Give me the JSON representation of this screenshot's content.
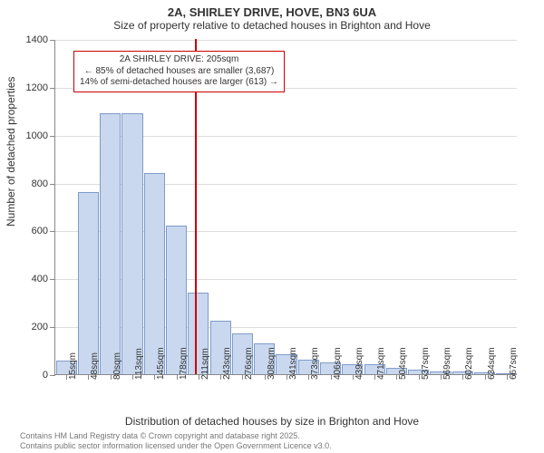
{
  "title": "2A, SHIRLEY DRIVE, HOVE, BN3 6UA",
  "subtitle": "Size of property relative to detached houses in Brighton and Hove",
  "y_axis_title": "Number of detached properties",
  "x_axis_title": "Distribution of detached houses by size in Brighton and Hove",
  "footer_line1": "Contains HM Land Registry data © Crown copyright and database right 2025.",
  "footer_line2": "Contains public sector information licensed under the Open Government Licence v3.0.",
  "annotation": {
    "line1": "2A SHIRLEY DRIVE: 205sqm",
    "line2": "← 85% of detached houses are smaller (3,687)",
    "line3": "14% of semi-detached houses are larger (613) →"
  },
  "chart": {
    "type": "histogram",
    "ylim": [
      0,
      1400
    ],
    "ytick_step": 200,
    "background_color": "#ffffff",
    "grid_color": "#dddddd",
    "axis_color": "#888888",
    "bar_fill": "#c9d8ef",
    "bar_stroke": "#7f9bc9",
    "marker_color": "#cc0000",
    "marker_x_value": 205,
    "x_categories": [
      "15sqm",
      "48sqm",
      "80sqm",
      "113sqm",
      "145sqm",
      "178sqm",
      "211sqm",
      "243sqm",
      "276sqm",
      "308sqm",
      "341sqm",
      "373sqm",
      "406sqm",
      "439sqm",
      "471sqm",
      "504sqm",
      "537sqm",
      "569sqm",
      "602sqm",
      "634sqm",
      "667sqm"
    ],
    "bar_values": [
      55,
      760,
      1090,
      1090,
      840,
      620,
      340,
      225,
      170,
      130,
      85,
      60,
      50,
      40,
      40,
      25,
      20,
      12,
      10,
      8,
      5
    ],
    "title_fontsize": 13,
    "subtitle_fontsize": 12,
    "axis_label_fontsize": 12,
    "tick_fontsize": 11,
    "annotation_fontsize": 10
  }
}
